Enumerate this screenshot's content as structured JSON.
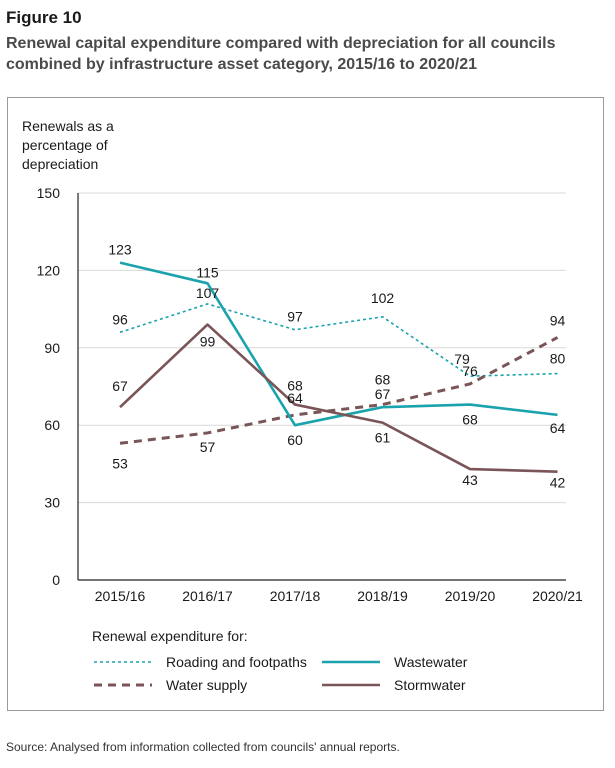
{
  "figure_label": "Figure 10",
  "title_line1": "Renewal capital expenditure compared with depreciation for all councils",
  "title_line2": "combined by infrastructure asset category, 2015/16 to 2020/21",
  "y_label_lines": [
    "Renewals as a",
    "percentage of",
    "depreciation"
  ],
  "legend_title": "Renewal expenditure for:",
  "source": "Source: Analysed from information collected from councils' annual reports.",
  "colors": {
    "teal": "#1aa3ad",
    "brown": "#7a5558",
    "axis": "#222222",
    "grid": "#d9d9d9"
  },
  "chart_data": {
    "type": "line",
    "categories": [
      "2015/16",
      "2016/17",
      "2017/18",
      "2018/19",
      "2019/20",
      "2020/21"
    ],
    "ylim": [
      0,
      150
    ],
    "yticks": [
      "0",
      "30",
      "60",
      "90",
      "120",
      "150"
    ],
    "grid": true,
    "series": [
      {
        "name": "Roading and footpaths",
        "style": "dotted",
        "color": "#1aa3ad",
        "values": [
          96,
          107,
          97,
          102,
          79,
          80
        ],
        "labels": [
          "96",
          "107",
          "97",
          "102",
          "79",
          "80"
        ]
      },
      {
        "name": "Water supply",
        "style": "dashed",
        "color": "#7a5558",
        "values": [
          53,
          57,
          64,
          68,
          76,
          94
        ],
        "labels": [
          "53",
          "57",
          "64",
          "68",
          "76",
          "94"
        ]
      },
      {
        "name": "Wastewater",
        "style": "solid",
        "color": "#1aa3ad",
        "values": [
          123,
          115,
          60,
          67,
          68,
          64
        ],
        "labels": [
          "123",
          "115",
          "60",
          "67",
          "68",
          "64"
        ]
      },
      {
        "name": "Stormwater",
        "style": "solid",
        "color": "#7a5558",
        "values": [
          67,
          99,
          68,
          61,
          43,
          42
        ],
        "labels": [
          "67",
          "99",
          "68",
          "61",
          "43",
          "42"
        ]
      }
    ]
  }
}
